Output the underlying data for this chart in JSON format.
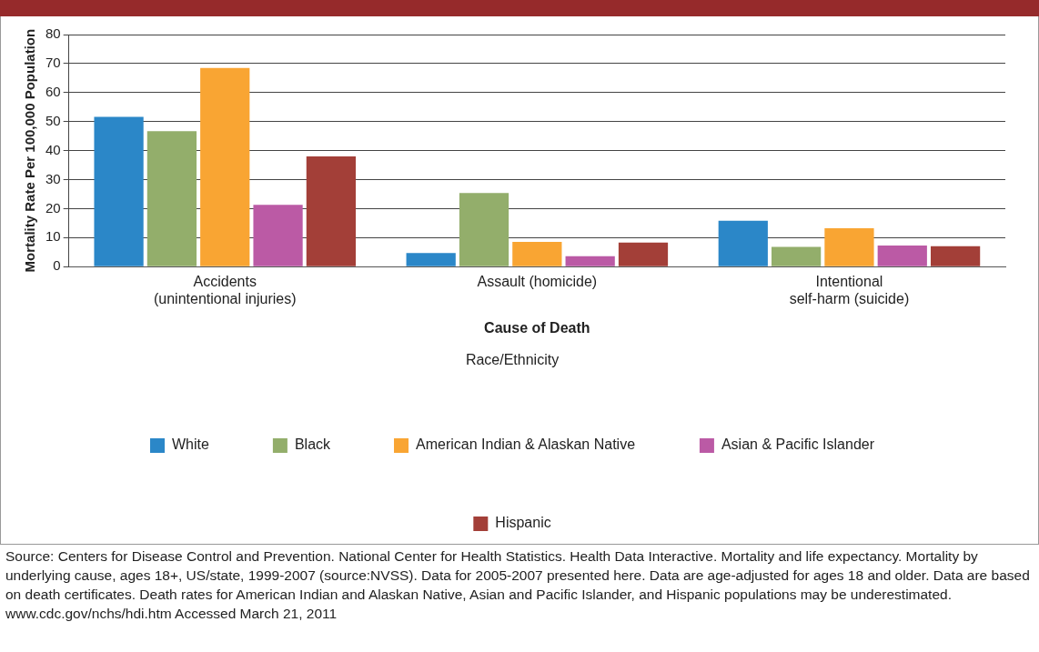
{
  "chart_data": {
    "type": "bar",
    "xlabel": "Cause of Death",
    "ylabel": "Mortality Rate Per 100,000 Population",
    "legend_title": "Race/Ethnicity",
    "categories": [
      [
        "Accidents",
        "(unintentional injuries)"
      ],
      "Assault (homicide)",
      [
        "Intentional",
        "self-harm (suicide)"
      ]
    ],
    "series": [
      {
        "name": "White",
        "color": "#2b87c8",
        "values": [
          51.6,
          4.7,
          15.8
        ]
      },
      {
        "name": "Black",
        "color": "#93ae6b",
        "values": [
          46.7,
          25.4,
          6.8
        ]
      },
      {
        "name": "American Indian & Alaskan Native",
        "color": "#f9a533",
        "values": [
          68.5,
          8.5,
          13.2
        ]
      },
      {
        "name": "Asian & Pacific Islander",
        "color": "#bb5aa5",
        "values": [
          21.3,
          3.6,
          7.3
        ]
      },
      {
        "name": "Hispanic",
        "color": "#a33f38",
        "values": [
          38.0,
          8.3,
          7.0
        ]
      }
    ],
    "ylim": [
      0,
      80
    ],
    "yticks": [
      0,
      10,
      20,
      30,
      40,
      50,
      60,
      70,
      80
    ],
    "grid": "y",
    "legend": "bottom",
    "annotations": [
      "Source: Centers for Disease Control and Prevention. National Center for Health Statistics. Health Data Interactive. Mortality and life expectancy. Mortality by underlying cause, ages 18+, US/state, 1999-2007 (source:NVSS). Data for 2005-2007 presented here. Data are age-adjusted for ages 18 and older. Data are based on death certificates. Death rates for American Indian and Alaskan Native, Asian and Pacific Islander, and Hispanic populations may be underestimated.",
      "www.cdc.gov/nchs/hdi.htm  Accessed March 21, 2011"
    ]
  }
}
